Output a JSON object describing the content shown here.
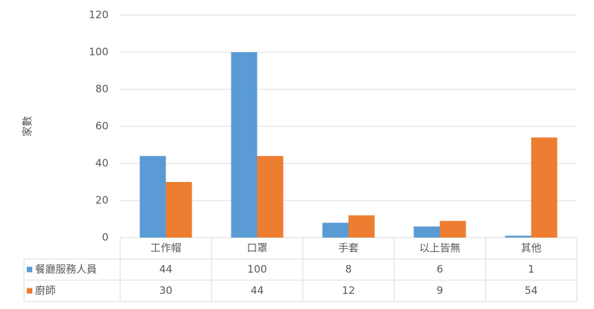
{
  "chart_data": {
    "type": "bar",
    "ylabel": "家數",
    "categories": [
      "工作帽",
      "口罩",
      "手套",
      "以上皆無",
      "其他"
    ],
    "series": [
      {
        "name": "餐廳服務人員",
        "color": "#5b9bd5",
        "values": [
          44,
          100,
          8,
          6,
          1
        ]
      },
      {
        "name": "廚師",
        "color": "#ed7d31",
        "values": [
          30,
          44,
          12,
          9,
          54
        ]
      }
    ],
    "ylim": [
      0,
      120
    ],
    "yticks": [
      0,
      20,
      40,
      60,
      80,
      100,
      120
    ],
    "grid": true,
    "data_table": true
  }
}
